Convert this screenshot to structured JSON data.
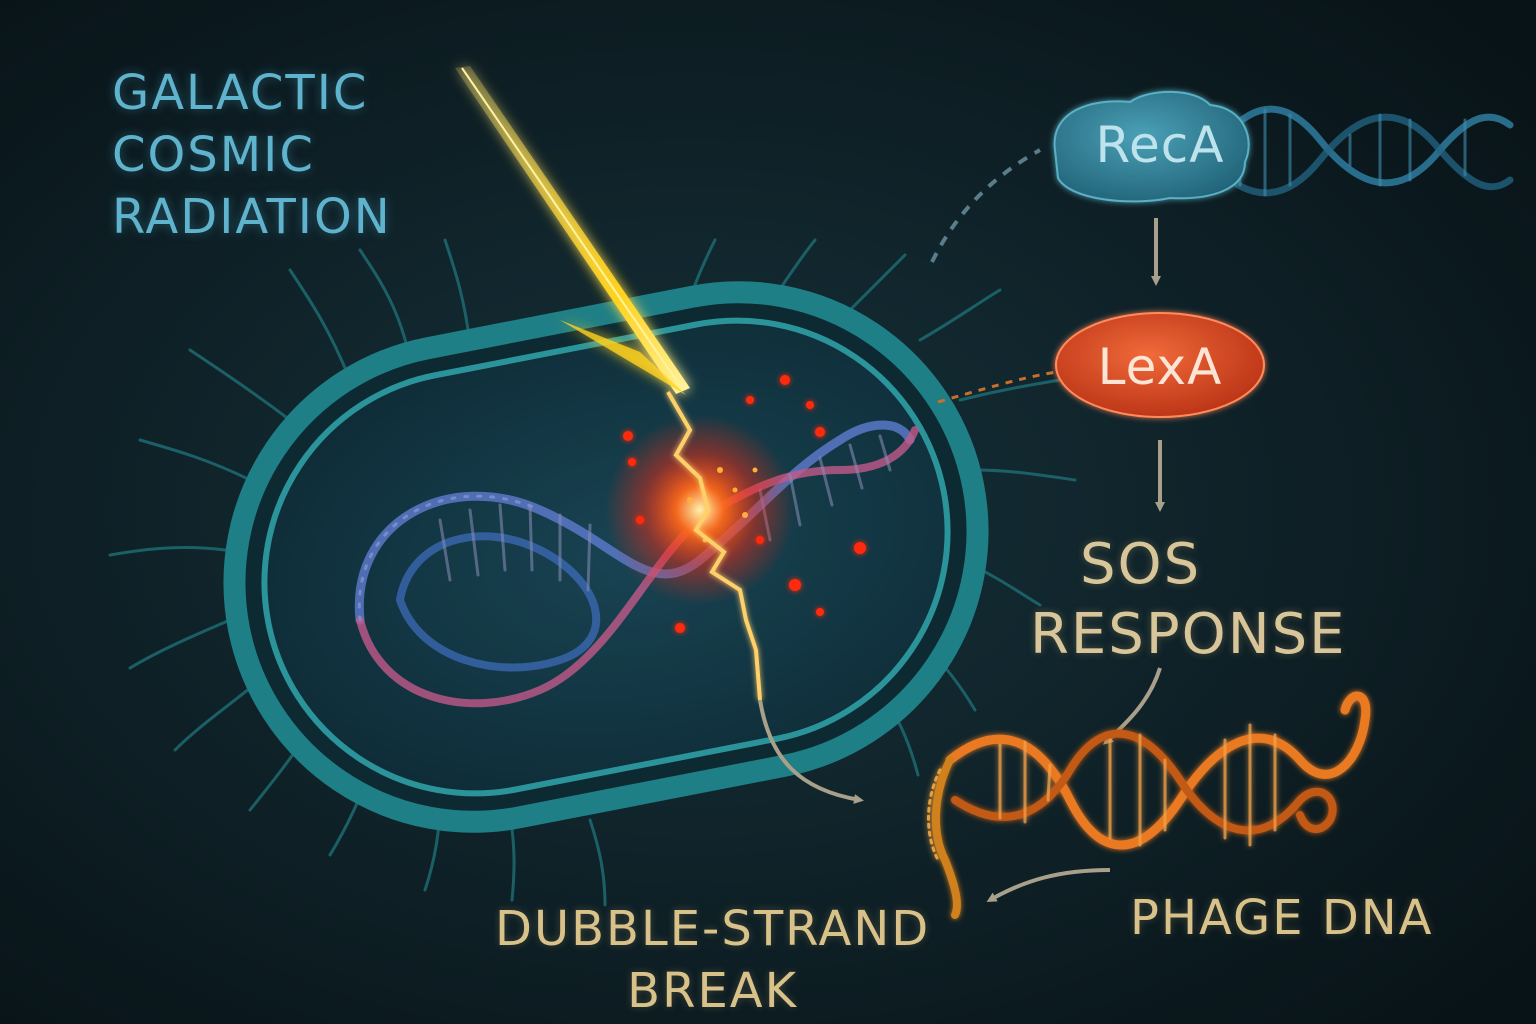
{
  "labels": {
    "radiation": [
      "GALACTIC",
      "COSMIC",
      "RADIATION"
    ],
    "reca": "RecA",
    "lexa": "LexA",
    "sos": [
      "SOS",
      "RESPONSE"
    ],
    "dsb": [
      "DUBBLE-STRAND",
      "BREAK"
    ],
    "phage": "PHAGE DNA"
  },
  "colors": {
    "background": "#0c1a20",
    "cell_membrane": "#1f7f86",
    "radiation_beam": "#ffd21e",
    "damage": "#ff3a1a",
    "reca": "#2f7d96",
    "lexa": "#d8421e",
    "phage_dna": "#e8781e",
    "arrows": "#a8a08a"
  },
  "icons": {
    "radiation_beam": "cosmic-ray-beam",
    "cell": "bacterium",
    "bacterial_dna": "double-helix",
    "phage_dna": "double-helix"
  }
}
